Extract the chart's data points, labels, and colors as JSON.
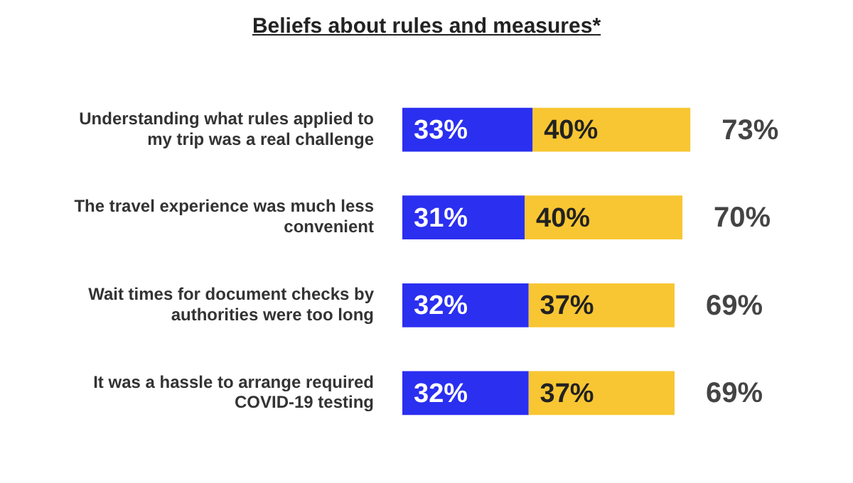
{
  "chart_data": {
    "type": "bar",
    "title": "Beliefs about rules and measures*",
    "orientation": "horizontal",
    "stacked": true,
    "categories": [
      "Understanding what rules applied to my trip was a real challenge",
      "The travel experience was much less convenient",
      "Wait times for document checks by authorities were too long",
      "It was a hassle to arrange required COVID-19 testing"
    ],
    "series": [
      {
        "color": "#2b2ff0",
        "values": [
          33,
          31,
          32,
          32
        ],
        "value_labels": [
          "33%",
          "31%",
          "32%",
          "32%"
        ]
      },
      {
        "color": "#f8c632",
        "values": [
          40,
          40,
          37,
          37
        ],
        "value_labels": [
          "40%",
          "40%",
          "37%",
          "37%"
        ]
      }
    ],
    "totals": [
      "73%",
      "70%",
      "69%",
      "69%"
    ]
  }
}
